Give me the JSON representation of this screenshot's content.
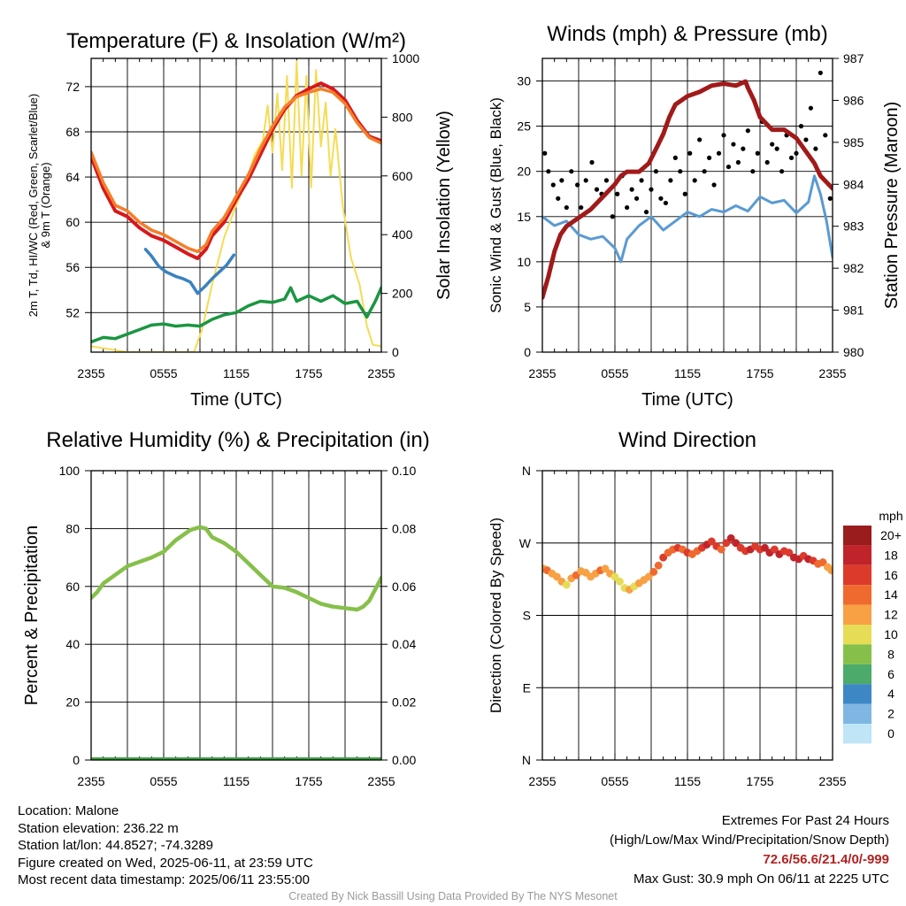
{
  "colors": {
    "temp": "#d7191c",
    "dewpoint": "#1a9641",
    "hiwc": "#3a82c0",
    "t9m": "#f57e2a",
    "insolation": "#f5dc55",
    "wind": "#5a9ad2",
    "gust": "#000000",
    "pressure": "#a11a1a",
    "rh": "#86c04a",
    "precip": "#3aa040",
    "extremes": "#b22222",
    "credit": "#9a9a9a"
  },
  "time_ticks": [
    "2355",
    "0555",
    "1155",
    "1755",
    "2355"
  ],
  "chart_data": [
    {
      "type": "line",
      "title": "Temperature (F) & Insolation (W/m²)",
      "xlabel": "Time (UTC)",
      "ylabel_left": [
        "2m T, Td, HI/WC (Red, Green, Scarlet/Blue)",
        "& 9m T (Orange)"
      ],
      "ylabel_right": "Solar Insolation (Yellow)",
      "x_ticks": [
        "2355",
        "0555",
        "1155",
        "1755",
        "2355"
      ],
      "y_ticks_left": [
        "52",
        "56",
        "60",
        "64",
        "68",
        "72"
      ],
      "y_ticks_right": [
        "0",
        "200",
        "400",
        "600",
        "800",
        "1000"
      ],
      "ylim_left": [
        48.5,
        74.5
      ],
      "ylim_right": [
        0,
        1000
      ],
      "xlim_hours": [
        0,
        24
      ],
      "series": [
        {
          "color_key": "insolation",
          "axis": "right",
          "width": 2,
          "x": [
            0,
            3,
            6,
            8.5,
            9.2,
            10,
            11,
            12,
            13,
            13.5,
            14.2,
            14.6,
            15,
            15.4,
            15.8,
            16.2,
            16.6,
            17,
            17.4,
            17.8,
            18.2,
            18.6,
            19,
            19.4,
            19.8,
            20.2,
            20.8,
            21.5,
            22.2,
            22.8,
            23.3,
            24
          ],
          "y": [
            20,
            0,
            0,
            0,
            80,
            230,
            390,
            500,
            600,
            670,
            720,
            840,
            680,
            880,
            620,
            940,
            560,
            990,
            600,
            940,
            560,
            960,
            700,
            850,
            600,
            760,
            500,
            320,
            230,
            90,
            25,
            20
          ]
        },
        {
          "color_key": "temp",
          "axis": "left",
          "width": 4,
          "x": [
            0,
            1,
            2,
            3,
            4,
            5,
            6,
            7,
            8,
            8.8,
            9.5,
            10,
            11,
            12,
            13,
            14,
            15,
            16,
            17,
            18,
            19,
            20,
            21,
            22,
            23,
            24
          ],
          "y": [
            65.8,
            63,
            61,
            60.5,
            59.5,
            58.8,
            58.4,
            57.8,
            57.2,
            56.8,
            57.6,
            58.8,
            60,
            62,
            63.8,
            66,
            68.2,
            70,
            71.2,
            71.8,
            72.3,
            71.8,
            70.8,
            69,
            67.6,
            67.2
          ]
        },
        {
          "color_key": "t9m",
          "axis": "left",
          "width": 3.5,
          "x": [
            0,
            1,
            2,
            3,
            4,
            5,
            6,
            7,
            8,
            8.8,
            9.5,
            10,
            11,
            12,
            13,
            14,
            15,
            16,
            17,
            18,
            19,
            20,
            21,
            22,
            23,
            24
          ],
          "y": [
            66.2,
            63.5,
            61.5,
            61,
            60,
            59.3,
            58.9,
            58.3,
            57.7,
            57.4,
            58,
            59.2,
            60.4,
            62.3,
            64.2,
            66.5,
            68.5,
            70.2,
            71.1,
            71.5,
            71.8,
            71.5,
            70.5,
            68.8,
            67.5,
            67.0
          ]
        },
        {
          "color_key": "hiwc",
          "axis": "left",
          "width": 3.5,
          "x": [
            4.5,
            5,
            5.6,
            6.2,
            7,
            7.6,
            8.2,
            8.8,
            9.4,
            10,
            10.6,
            11.2,
            11.8
          ],
          "y": [
            57.6,
            57.0,
            56.1,
            55.6,
            55.2,
            55.0,
            54.7,
            53.7,
            54.3,
            55.0,
            55.6,
            56.2,
            57.1
          ]
        },
        {
          "color_key": "dewpoint",
          "axis": "left",
          "width": 3.5,
          "x": [
            0,
            1,
            2,
            3,
            4,
            5,
            6,
            7,
            8,
            9,
            10,
            11,
            12,
            13,
            14,
            15,
            16,
            16.5,
            17,
            18,
            19,
            20,
            21,
            22,
            22.8,
            23.5,
            24
          ],
          "y": [
            49.4,
            49.8,
            49.7,
            50.1,
            50.5,
            50.9,
            51.0,
            50.8,
            50.9,
            50.8,
            51.4,
            51.8,
            52.0,
            52.6,
            53.0,
            52.9,
            53.2,
            54.2,
            53.0,
            53.5,
            53.0,
            53.5,
            52.8,
            53.0,
            51.6,
            53.0,
            54.2
          ]
        }
      ]
    },
    {
      "type": "line",
      "title": "Winds (mph) & Pressure (mb)",
      "xlabel": "Time (UTC)",
      "ylabel_left": "Sonic Wind & Gust (Blue, Black)",
      "ylabel_right": "Station Pressure (Maroon)",
      "x_ticks": [
        "2355",
        "0555",
        "1155",
        "1755",
        "2355"
      ],
      "y_ticks_left": [
        "0",
        "5",
        "10",
        "15",
        "20",
        "25",
        "30"
      ],
      "y_ticks_right": [
        "980",
        "981",
        "982",
        "983",
        "984",
        "985",
        "986",
        "987"
      ],
      "ylim_left": [
        0,
        32.5
      ],
      "ylim_right": [
        980,
        987
      ],
      "xlim_hours": [
        0,
        24
      ],
      "series": [
        {
          "color_key": "wind",
          "axis": "left",
          "width": 3,
          "x": [
            0,
            1,
            2,
            3,
            4,
            5,
            6,
            6.5,
            7,
            8,
            9,
            10,
            11,
            12,
            13,
            14,
            15,
            16,
            17,
            18,
            19,
            20,
            21,
            22,
            22.5,
            23,
            23.5,
            24
          ],
          "y": [
            15,
            14,
            14.5,
            13,
            12.5,
            12.8,
            11.5,
            10,
            12.5,
            14,
            15,
            13.5,
            14.5,
            15.5,
            15,
            15.8,
            15.5,
            16.2,
            15.6,
            17.2,
            16.5,
            16.8,
            15.4,
            16.6,
            19.5,
            17.5,
            14.5,
            10.5
          ]
        },
        {
          "color_key": "gust",
          "axis": "left",
          "type": "scatter",
          "x": [
            0.2,
            0.5,
            0.9,
            1.3,
            1.6,
            2.0,
            2.4,
            2.9,
            3.2,
            3.6,
            4.1,
            4.5,
            4.9,
            5.3,
            5.8,
            6.2,
            6.6,
            7.0,
            7.4,
            7.8,
            8.2,
            8.6,
            9.0,
            9.4,
            9.8,
            10.2,
            10.6,
            11.0,
            11.4,
            11.8,
            12.2,
            12.6,
            13.0,
            13.4,
            13.8,
            14.2,
            14.6,
            15.0,
            15.4,
            15.8,
            16.2,
            16.6,
            17.0,
            17.4,
            17.8,
            18.2,
            18.6,
            19.0,
            19.4,
            19.8,
            20.2,
            20.6,
            21.0,
            21.4,
            21.8,
            22.2,
            22.6,
            23.0,
            23.4,
            23.8
          ],
          "y": [
            22,
            20,
            18.5,
            17,
            19,
            16,
            20,
            18.5,
            16,
            19,
            21,
            18,
            17.5,
            19,
            15,
            17.5,
            19.5,
            16,
            18,
            17,
            19,
            15.5,
            18,
            20,
            17,
            16.5,
            19,
            21.5,
            20,
            17.5,
            22,
            19,
            23.5,
            20,
            21.5,
            18.5,
            22,
            24,
            20.5,
            23,
            21,
            22.5,
            24.5,
            20,
            22,
            25.5,
            21,
            23,
            22.5,
            20,
            24,
            21.5,
            22,
            25,
            23.5,
            27,
            22.5,
            30.9,
            24,
            17
          ]
        },
        {
          "color_key": "pressure",
          "axis": "right",
          "width": 5,
          "x": [
            0,
            0.5,
            1,
            1.5,
            2,
            3,
            4,
            5,
            6,
            6.5,
            7,
            8,
            8.8,
            9.5,
            10,
            10.5,
            11,
            11.5,
            12,
            13,
            14,
            15,
            16,
            16.8,
            17,
            17.5,
            18,
            19,
            20,
            21,
            22,
            22.5,
            23,
            24
          ],
          "y": [
            981.3,
            981.8,
            982.4,
            982.8,
            983.0,
            983.2,
            983.4,
            983.7,
            984.0,
            984.2,
            984.3,
            984.3,
            984.5,
            984.9,
            985.2,
            985.6,
            985.9,
            986.0,
            986.1,
            986.2,
            986.35,
            986.4,
            986.35,
            986.45,
            986.3,
            986.0,
            985.6,
            985.3,
            985.3,
            985.1,
            984.7,
            984.5,
            984.2,
            983.9
          ]
        }
      ]
    },
    {
      "type": "line",
      "title": "Relative Humidity (%) & Precipitation (in)",
      "xlabel": "",
      "ylabel_left": "Percent & Precipitation",
      "x_ticks": [
        "2355",
        "0555",
        "1155",
        "1755",
        "2355"
      ],
      "y_ticks_left": [
        "0",
        "20",
        "40",
        "60",
        "80",
        "100"
      ],
      "y_ticks_right": [
        "0.00",
        "0.02",
        "0.04",
        "0.06",
        "0.08",
        "0.10"
      ],
      "ylim_left": [
        0,
        100
      ],
      "ylim_right": [
        0,
        0.1
      ],
      "xlim_hours": [
        0,
        24
      ],
      "series": [
        {
          "color_key": "rh",
          "axis": "left",
          "width": 4.5,
          "x": [
            0,
            0.5,
            1,
            2,
            3,
            4,
            5,
            6,
            7,
            7.7,
            8.2,
            9,
            9.5,
            10,
            11,
            12,
            13,
            14,
            15,
            16,
            17,
            18,
            19,
            20,
            21,
            22,
            22.5,
            23,
            23.5,
            24
          ],
          "y": [
            56,
            58,
            61,
            64,
            67,
            68.5,
            70,
            72,
            76,
            78,
            79.5,
            80.5,
            80,
            77,
            75,
            72,
            68,
            64,
            60,
            59.5,
            58,
            56,
            54,
            53,
            52.5,
            52,
            53,
            55,
            59,
            63
          ]
        },
        {
          "color_key": "precip",
          "axis": "left",
          "width": 6,
          "x": [
            0,
            24
          ],
          "y": [
            0,
            0
          ]
        }
      ]
    },
    {
      "type": "scatter",
      "title": "Wind Direction",
      "xlabel": "",
      "ylabel_left": "Direction (Colored By Speed)",
      "x_ticks": [
        "2355",
        "0555",
        "1155",
        "1755",
        "2355"
      ],
      "y_ticks_left": [
        "N",
        "E",
        "S",
        "W",
        "N"
      ],
      "ylim_left": [
        0,
        360
      ],
      "xlim_hours": [
        0,
        24
      ],
      "colorbar": {
        "label": "mph",
        "ticks": [
          "20+",
          "18",
          "16",
          "14",
          "12",
          "10",
          "8",
          "6",
          "4",
          "2",
          "0"
        ],
        "colors": [
          "#9b1c1c",
          "#c0242a",
          "#dc3a2b",
          "#ef6a2e",
          "#f7a044",
          "#e6dc55",
          "#86c04a",
          "#4caa6a",
          "#3e87c5",
          "#7fb7e2",
          "#bfe5f7"
        ]
      },
      "points": {
        "x": [
          0.1,
          0.4,
          0.8,
          1.2,
          1.6,
          2.0,
          2.4,
          2.8,
          3.2,
          3.6,
          4.0,
          4.4,
          4.8,
          5.2,
          5.6,
          6.0,
          6.4,
          6.8,
          7.2,
          7.6,
          8.0,
          8.4,
          8.8,
          9.2,
          9.6,
          10.0,
          10.4,
          10.8,
          11.2,
          11.6,
          12.0,
          12.4,
          12.8,
          13.2,
          13.6,
          14.0,
          14.4,
          14.8,
          15.2,
          15.6,
          16.0,
          16.4,
          16.8,
          17.2,
          17.6,
          18.0,
          18.4,
          18.8,
          19.2,
          19.6,
          20.0,
          20.4,
          20.8,
          21.2,
          21.6,
          22.0,
          22.4,
          22.8,
          23.2,
          23.6,
          23.9
        ],
        "y": [
          238,
          236,
          232,
          228,
          222,
          218,
          226,
          230,
          235,
          233,
          228,
          232,
          236,
          238,
          232,
          228,
          222,
          214,
          212,
          216,
          220,
          224,
          228,
          234,
          242,
          252,
          258,
          262,
          264,
          262,
          258,
          256,
          260,
          264,
          268,
          272,
          266,
          262,
          270,
          276,
          270,
          264,
          260,
          262,
          266,
          262,
          264,
          258,
          262,
          256,
          260,
          258,
          252,
          250,
          254,
          250,
          248,
          244,
          246,
          240,
          236
        ],
        "speed": [
          13,
          14,
          12,
          13,
          12,
          11,
          12,
          14,
          13,
          12,
          13,
          12,
          14,
          13,
          12,
          11,
          10,
          11,
          12,
          11,
          12,
          13,
          12,
          14,
          15,
          16,
          15,
          14,
          16,
          15,
          17,
          14,
          15,
          17,
          18,
          16,
          17,
          15,
          17,
          19,
          18,
          16,
          17,
          18,
          16,
          17,
          18,
          19,
          17,
          18,
          16,
          17,
          18,
          19,
          17,
          18,
          16,
          15,
          14,
          13,
          12
        ]
      }
    }
  ],
  "info": {
    "location": "Location: Malone",
    "elevation": "Station elevation: 236.22 m",
    "latlon": "Station lat/lon: 44.8527; -74.3289",
    "created": "Figure created on Wed, 2025-06-11, at 23:59 UTC",
    "recent": "Most recent data timestamp: 2025/06/11 23:55:00"
  },
  "extremes": {
    "title": "Extremes For Past 24 Hours",
    "subtitle": "(High/Low/Max Wind/Precipitation/Snow Depth)",
    "values": "72.6/56.6/21.4/0/-999",
    "gust": "Max Gust: 30.9 mph On 06/11 at 2225 UTC"
  },
  "credit": "Created By Nick Bassill Using Data Provided By The NYS Mesonet"
}
